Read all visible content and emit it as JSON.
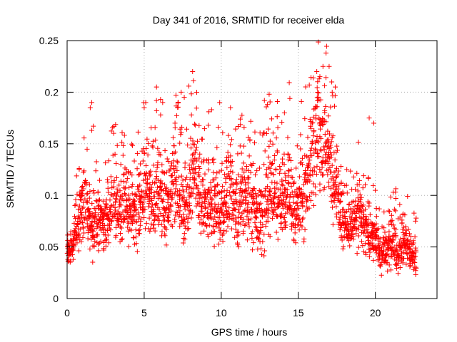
{
  "chart_data": {
    "type": "scatter",
    "title": "Day 341 of 2016, SRMTID for receiver elda",
    "xlabel": "GPS time / hours",
    "ylabel": "SRMTID / TECUs",
    "xlim": [
      0,
      24
    ],
    "ylim": [
      0,
      0.25
    ],
    "xticks": [
      0,
      5,
      10,
      15,
      20
    ],
    "yticks": [
      0,
      0.05,
      0.1,
      0.15,
      0.2,
      0.25
    ],
    "xtick_labels": [
      "0",
      "5",
      "10",
      "15",
      "20"
    ],
    "ytick_labels": [
      "0",
      "0.05",
      "0.1",
      "0.15",
      "0.2",
      "0.25"
    ],
    "grid": true,
    "marker": "+",
    "color": "#ff0000",
    "series": [
      {
        "name": "SRMTID",
        "x": [
          0.0,
          0.1,
          0.2,
          0.3,
          0.4,
          0.5,
          0.6,
          0.7,
          0.8,
          0.9,
          1.0,
          1.1,
          1.2,
          1.3,
          1.4,
          1.5,
          1.6,
          1.7,
          1.8,
          1.9,
          2.0,
          2.1,
          2.2,
          2.3,
          2.4,
          2.5,
          2.6,
          2.7,
          2.8,
          2.9,
          3.0,
          3.1,
          3.2,
          3.3,
          3.4,
          3.5,
          3.6,
          3.7,
          3.8,
          3.9,
          4.0,
          4.1,
          4.2,
          4.3,
          4.4,
          4.5,
          4.6,
          4.7,
          4.8,
          4.9,
          5.0,
          5.1,
          5.2,
          5.3,
          5.4,
          5.5,
          5.6,
          5.7,
          5.8,
          5.9,
          6.0,
          6.1,
          6.2,
          6.3,
          6.4,
          6.5,
          6.6,
          6.7,
          6.8,
          6.9,
          7.0,
          7.1,
          7.2,
          7.3,
          7.4,
          7.5,
          7.6,
          7.7,
          7.8,
          7.9,
          8.0,
          8.1,
          8.2,
          8.3,
          8.4,
          8.5,
          8.6,
          8.7,
          8.8,
          8.9,
          9.0,
          9.1,
          9.2,
          9.3,
          9.4,
          9.5,
          9.6,
          9.7,
          9.8,
          9.9,
          10.0,
          10.1,
          10.2,
          10.3,
          10.4,
          10.5,
          10.6,
          10.7,
          10.8,
          10.9,
          11.0,
          11.1,
          11.2,
          11.3,
          11.4,
          11.5,
          11.6,
          11.7,
          11.8,
          11.9,
          12.0,
          12.1,
          12.2,
          12.3,
          12.4,
          12.5,
          12.6,
          12.7,
          12.8,
          12.9,
          13.0,
          13.1,
          13.2,
          13.3,
          13.4,
          13.5,
          13.6,
          13.7,
          13.8,
          13.9,
          14.0,
          14.1,
          14.2,
          14.3,
          14.4,
          14.5,
          14.6,
          14.7,
          14.8,
          14.9,
          15.0,
          15.1,
          15.2,
          15.3,
          15.4,
          15.5,
          15.6,
          15.7,
          15.8,
          15.9,
          16.0,
          16.1,
          16.2,
          16.3,
          16.4,
          16.5,
          16.6,
          16.7,
          16.8,
          16.9,
          17.0,
          17.1,
          17.2,
          17.3,
          17.4,
          17.5,
          17.6,
          17.7,
          17.8,
          17.9,
          18.0,
          18.1,
          18.2,
          18.3,
          18.4,
          18.5,
          18.6,
          18.7,
          18.8,
          18.9,
          19.0,
          19.1,
          19.2,
          19.3,
          19.4,
          19.5,
          19.6,
          19.7,
          19.8,
          19.9,
          20.0,
          20.1,
          20.2,
          20.3,
          20.4,
          20.5,
          20.6,
          20.7,
          20.8,
          20.9,
          21.0,
          21.1,
          21.2,
          21.3,
          21.4,
          21.5,
          21.6,
          21.7,
          21.8,
          21.9,
          22.0,
          22.1,
          22.2,
          22.3,
          22.4,
          22.5,
          22.6,
          22.7,
          22.8
        ],
        "center": [
          0.048,
          0.045,
          0.042,
          0.048,
          0.052,
          0.06,
          0.065,
          0.07,
          0.078,
          0.085,
          0.09,
          0.095,
          0.1,
          0.085,
          0.075,
          0.07,
          0.068,
          0.065,
          0.07,
          0.075,
          0.08,
          0.078,
          0.076,
          0.074,
          0.072,
          0.07,
          0.072,
          0.075,
          0.08,
          0.085,
          0.09,
          0.092,
          0.088,
          0.085,
          0.082,
          0.08,
          0.085,
          0.09,
          0.095,
          0.092,
          0.088,
          0.086,
          0.084,
          0.083,
          0.082,
          0.08,
          0.085,
          0.09,
          0.095,
          0.1,
          0.105,
          0.108,
          0.11,
          0.105,
          0.1,
          0.095,
          0.09,
          0.095,
          0.1,
          0.105,
          0.11,
          0.1,
          0.095,
          0.09,
          0.092,
          0.094,
          0.096,
          0.098,
          0.1,
          0.102,
          0.104,
          0.1,
          0.095,
          0.09,
          0.085,
          0.08,
          0.085,
          0.09,
          0.095,
          0.1,
          0.11,
          0.12,
          0.13,
          0.125,
          0.115,
          0.105,
          0.1,
          0.095,
          0.09,
          0.088,
          0.086,
          0.085,
          0.09,
          0.095,
          0.1,
          0.095,
          0.09,
          0.085,
          0.082,
          0.08,
          0.082,
          0.085,
          0.09,
          0.095,
          0.1,
          0.105,
          0.11,
          0.1,
          0.095,
          0.09,
          0.085,
          0.08,
          0.085,
          0.09,
          0.095,
          0.1,
          0.098,
          0.096,
          0.094,
          0.092,
          0.09,
          0.088,
          0.085,
          0.082,
          0.08,
          0.078,
          0.076,
          0.078,
          0.08,
          0.085,
          0.09,
          0.1,
          0.11,
          0.105,
          0.1,
          0.098,
          0.096,
          0.094,
          0.092,
          0.09,
          0.095,
          0.1,
          0.105,
          0.11,
          0.105,
          0.1,
          0.095,
          0.09,
          0.088,
          0.086,
          0.09,
          0.092,
          0.094,
          0.096,
          0.098,
          0.1,
          0.11,
          0.12,
          0.13,
          0.14,
          0.145,
          0.15,
          0.155,
          0.16,
          0.158,
          0.155,
          0.15,
          0.145,
          0.14,
          0.135,
          0.13,
          0.125,
          0.12,
          0.115,
          0.112,
          0.11,
          0.1,
          0.09,
          0.08,
          0.075,
          0.072,
          0.07,
          0.068,
          0.066,
          0.065,
          0.064,
          0.07,
          0.08,
          0.085,
          0.09,
          0.085,
          0.075,
          0.07,
          0.068,
          0.066,
          0.064,
          0.062,
          0.06,
          0.058,
          0.056,
          0.054,
          0.052,
          0.05,
          0.048,
          0.046,
          0.045,
          0.044,
          0.045,
          0.046,
          0.048,
          0.05,
          0.052,
          0.05,
          0.048,
          0.046,
          0.045,
          0.046,
          0.048,
          0.05,
          0.052,
          0.05,
          0.048,
          0.046,
          0.044,
          0.042,
          0.04,
          0.04
        ],
        "spread": [
          0.008,
          0.012,
          0.01,
          0.008,
          0.012,
          0.015,
          0.018,
          0.02,
          0.024,
          0.03,
          0.035,
          0.03,
          0.025,
          0.02,
          0.02,
          0.018,
          0.018,
          0.02,
          0.022,
          0.024,
          0.026,
          0.025,
          0.024,
          0.022,
          0.022,
          0.022,
          0.024,
          0.026,
          0.028,
          0.028,
          0.028,
          0.026,
          0.026,
          0.025,
          0.025,
          0.025,
          0.026,
          0.028,
          0.03,
          0.028,
          0.028,
          0.026,
          0.026,
          0.026,
          0.026,
          0.028,
          0.03,
          0.032,
          0.034,
          0.036,
          0.036,
          0.035,
          0.034,
          0.032,
          0.03,
          0.03,
          0.03,
          0.03,
          0.032,
          0.034,
          0.036,
          0.034,
          0.032,
          0.03,
          0.03,
          0.03,
          0.032,
          0.034,
          0.036,
          0.038,
          0.04,
          0.036,
          0.034,
          0.032,
          0.03,
          0.03,
          0.032,
          0.034,
          0.036,
          0.038,
          0.04,
          0.042,
          0.042,
          0.04,
          0.038,
          0.036,
          0.034,
          0.032,
          0.03,
          0.03,
          0.03,
          0.03,
          0.032,
          0.034,
          0.036,
          0.034,
          0.032,
          0.03,
          0.03,
          0.03,
          0.03,
          0.032,
          0.034,
          0.036,
          0.038,
          0.04,
          0.04,
          0.036,
          0.034,
          0.032,
          0.03,
          0.03,
          0.032,
          0.034,
          0.036,
          0.036,
          0.034,
          0.032,
          0.032,
          0.03,
          0.03,
          0.03,
          0.03,
          0.03,
          0.03,
          0.03,
          0.03,
          0.03,
          0.032,
          0.034,
          0.036,
          0.038,
          0.04,
          0.038,
          0.036,
          0.034,
          0.032,
          0.032,
          0.03,
          0.03,
          0.032,
          0.034,
          0.036,
          0.038,
          0.036,
          0.034,
          0.032,
          0.03,
          0.03,
          0.03,
          0.03,
          0.032,
          0.034,
          0.036,
          0.038,
          0.04,
          0.042,
          0.044,
          0.046,
          0.048,
          0.05,
          0.05,
          0.05,
          0.048,
          0.046,
          0.044,
          0.042,
          0.04,
          0.038,
          0.036,
          0.034,
          0.032,
          0.03,
          0.03,
          0.03,
          0.03,
          0.03,
          0.03,
          0.028,
          0.025,
          0.022,
          0.02,
          0.02,
          0.02,
          0.02,
          0.02,
          0.022,
          0.025,
          0.03,
          0.032,
          0.03,
          0.026,
          0.024,
          0.022,
          0.02,
          0.02,
          0.02,
          0.02,
          0.02,
          0.02,
          0.02,
          0.018,
          0.018,
          0.018,
          0.018,
          0.016,
          0.016,
          0.016,
          0.016,
          0.016,
          0.018,
          0.018,
          0.02,
          0.02,
          0.018,
          0.018,
          0.018,
          0.018,
          0.018,
          0.018,
          0.018,
          0.018,
          0.018,
          0.016,
          0.015,
          0.015,
          0.014,
          0.014,
          0.012
        ],
        "outliers": [
          [
            1.6,
            0.19
          ],
          [
            1.5,
            0.185
          ],
          [
            1.7,
            0.167
          ],
          [
            1.6,
            0.163
          ],
          [
            5.0,
            0.185
          ],
          [
            5.1,
            0.19
          ],
          [
            5.8,
            0.205
          ],
          [
            6.2,
            0.19
          ],
          [
            7.4,
            0.2
          ],
          [
            7.6,
            0.195
          ],
          [
            7.0,
            0.17
          ],
          [
            9.9,
            0.19
          ],
          [
            10.6,
            0.185
          ],
          [
            12.8,
            0.192
          ],
          [
            13.0,
            0.188
          ],
          [
            14.1,
            0.18
          ],
          [
            16.2,
            0.22
          ],
          [
            16.4,
            0.215
          ],
          [
            16.6,
            0.225
          ],
          [
            16.8,
            0.238
          ],
          [
            17.0,
            0.225
          ],
          [
            17.2,
            0.2
          ],
          [
            17.4,
            0.205
          ],
          [
            19.6,
            0.175
          ],
          [
            19.9,
            0.17
          ],
          [
            21.3,
            0.085
          ],
          [
            21.8,
            0.082
          ],
          [
            22.6,
            0.075
          ]
        ]
      }
    ]
  }
}
